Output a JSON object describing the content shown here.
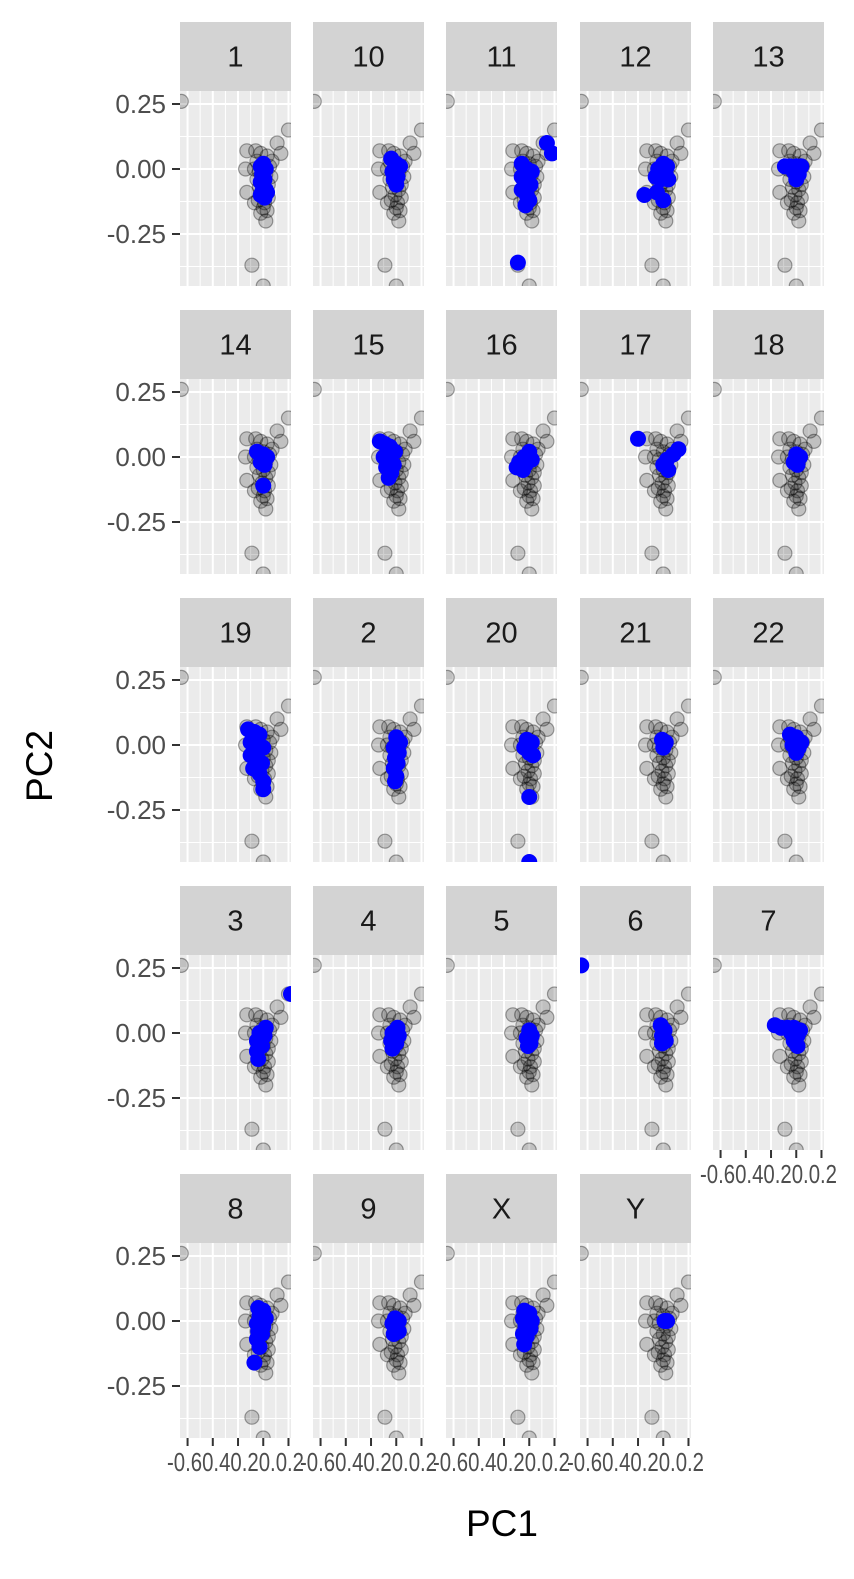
{
  "chart_data": {
    "type": "scatter",
    "xlabel": "PC1",
    "ylabel": "PC2",
    "xlim": [
      -0.66,
      0.22
    ],
    "ylim": [
      -0.45,
      0.3
    ],
    "y_ticks": [
      {
        "value": 0.25,
        "label": "0.25"
      },
      {
        "value": 0.0,
        "label": "0.00"
      },
      {
        "value": -0.25,
        "label": "-0.25"
      }
    ],
    "x_ticks": [
      {
        "value": -0.6,
        "label": "-0.6"
      },
      {
        "value": -0.4,
        "label": "-0.4"
      },
      {
        "value": -0.2,
        "label": "-0.2"
      },
      {
        "value": 0.0,
        "label": "0.0"
      },
      {
        "value": 0.2,
        "label": "0.2"
      }
    ],
    "x_tick_axis_text": "-0.60.40.20.0.2",
    "colors": {
      "panel_bg": "#ebebeb",
      "grid": "#ffffff",
      "strip_bg": "#d3d3d3",
      "background_point": "#000000",
      "highlight_point": "#0000ff"
    },
    "background_points": [
      [
        -0.65,
        0.26
      ],
      [
        0.2,
        0.15
      ],
      [
        0.11,
        0.1
      ],
      [
        0.14,
        0.06
      ],
      [
        -0.13,
        0.07
      ],
      [
        -0.14,
        0.0
      ],
      [
        -0.13,
        -0.09
      ],
      [
        -0.07,
        -0.13
      ],
      [
        0.02,
        -0.2
      ],
      [
        -0.09,
        -0.37
      ],
      [
        0.0,
        -0.45
      ],
      [
        -0.06,
        0.07
      ],
      [
        -0.02,
        0.06
      ],
      [
        0.03,
        0.05
      ],
      [
        0.07,
        0.03
      ],
      [
        -0.05,
        0.03
      ],
      [
        0.0,
        0.02
      ],
      [
        0.05,
        0.01
      ],
      [
        -0.07,
        0.0
      ],
      [
        -0.03,
        -0.01
      ],
      [
        0.02,
        -0.02
      ],
      [
        0.06,
        -0.03
      ],
      [
        -0.05,
        -0.04
      ],
      [
        0.0,
        -0.05
      ],
      [
        0.04,
        -0.06
      ],
      [
        -0.03,
        -0.07
      ],
      [
        0.02,
        -0.08
      ],
      [
        -0.01,
        -0.1
      ],
      [
        0.04,
        -0.11
      ],
      [
        -0.04,
        -0.12
      ],
      [
        0.01,
        -0.13
      ],
      [
        0.0,
        -0.15
      ],
      [
        0.03,
        -0.16
      ],
      [
        -0.02,
        -0.17
      ]
    ],
    "panels": [
      {
        "label": "1",
        "points": [
          [
            -0.02,
            0.01
          ],
          [
            0.0,
            0.02
          ],
          [
            0.02,
            0.0
          ],
          [
            -0.01,
            -0.02
          ],
          [
            0.01,
            -0.04
          ],
          [
            -0.02,
            -0.05
          ],
          [
            0.0,
            -0.07
          ],
          [
            0.02,
            -0.08
          ],
          [
            -0.01,
            -0.09
          ],
          [
            0.03,
            -0.09
          ],
          [
            -0.02,
            -0.1
          ],
          [
            0.01,
            -0.11
          ]
        ]
      },
      {
        "label": "10",
        "points": [
          [
            -0.04,
            0.04
          ],
          [
            0.0,
            0.02
          ],
          [
            0.03,
            0.01
          ],
          [
            -0.03,
            -0.01
          ],
          [
            0.01,
            -0.03
          ],
          [
            -0.02,
            -0.04
          ],
          [
            0.0,
            -0.06
          ]
        ]
      },
      {
        "label": "11",
        "points": [
          [
            0.14,
            0.1
          ],
          [
            0.18,
            0.06
          ],
          [
            -0.06,
            0.02
          ],
          [
            -0.02,
            0.0
          ],
          [
            0.02,
            -0.01
          ],
          [
            -0.06,
            -0.03
          ],
          [
            -0.02,
            -0.05
          ],
          [
            0.01,
            -0.06
          ],
          [
            -0.06,
            -0.08
          ],
          [
            -0.02,
            -0.1
          ],
          [
            0.0,
            -0.12
          ],
          [
            -0.03,
            -0.14
          ],
          [
            -0.09,
            -0.36
          ]
        ]
      },
      {
        "label": "12",
        "points": [
          [
            0.0,
            0.02
          ],
          [
            0.03,
            0.01
          ],
          [
            -0.04,
            0.0
          ],
          [
            0.02,
            -0.02
          ],
          [
            -0.06,
            -0.03
          ],
          [
            -0.02,
            -0.04
          ],
          [
            0.04,
            -0.04
          ],
          [
            -0.15,
            -0.1
          ],
          [
            -0.05,
            -0.09
          ],
          [
            0.0,
            -0.12
          ]
        ]
      },
      {
        "label": "13",
        "points": [
          [
            -0.09,
            0.01
          ],
          [
            -0.05,
            0.01
          ],
          [
            0.0,
            0.01
          ],
          [
            0.04,
            0.01
          ],
          [
            -0.02,
            -0.01
          ],
          [
            0.02,
            -0.02
          ],
          [
            0.0,
            -0.04
          ]
        ]
      },
      {
        "label": "14",
        "points": [
          [
            -0.05,
            0.02
          ],
          [
            0.0,
            0.01
          ],
          [
            0.03,
            0.0
          ],
          [
            -0.02,
            -0.02
          ],
          [
            0.01,
            -0.03
          ],
          [
            0.0,
            -0.11
          ]
        ]
      },
      {
        "label": "15",
        "points": [
          [
            -0.13,
            0.06
          ],
          [
            -0.09,
            0.05
          ],
          [
            -0.05,
            0.04
          ],
          [
            -0.01,
            0.02
          ],
          [
            -0.1,
            0.0
          ],
          [
            -0.06,
            -0.01
          ],
          [
            -0.02,
            -0.03
          ],
          [
            -0.08,
            -0.04
          ],
          [
            -0.04,
            -0.06
          ],
          [
            -0.06,
            -0.08
          ]
        ]
      },
      {
        "label": "16",
        "points": [
          [
            0.0,
            0.02
          ],
          [
            -0.04,
            0.0
          ],
          [
            0.02,
            -0.01
          ],
          [
            -0.08,
            -0.02
          ],
          [
            -0.03,
            -0.03
          ],
          [
            -0.1,
            -0.04
          ],
          [
            -0.05,
            -0.05
          ]
        ]
      },
      {
        "label": "17",
        "points": [
          [
            -0.2,
            0.07
          ],
          [
            0.12,
            0.03
          ],
          [
            0.08,
            0.01
          ],
          [
            0.03,
            -0.01
          ],
          [
            0.0,
            -0.03
          ],
          [
            0.04,
            -0.05
          ]
        ]
      },
      {
        "label": "18",
        "points": [
          [
            0.0,
            0.01
          ],
          [
            0.03,
            0.0
          ],
          [
            -0.02,
            -0.02
          ],
          [
            0.01,
            -0.03
          ]
        ]
      },
      {
        "label": "19",
        "points": [
          [
            -0.12,
            0.06
          ],
          [
            -0.07,
            0.05
          ],
          [
            -0.03,
            0.04
          ],
          [
            -0.1,
            0.01
          ],
          [
            -0.05,
            0.0
          ],
          [
            0.0,
            -0.01
          ],
          [
            -0.1,
            -0.04
          ],
          [
            -0.06,
            -0.05
          ],
          [
            -0.01,
            -0.07
          ],
          [
            -0.08,
            -0.09
          ],
          [
            -0.03,
            -0.11
          ],
          [
            0.0,
            -0.14
          ],
          [
            0.0,
            -0.17
          ]
        ]
      },
      {
        "label": "2",
        "points": [
          [
            0.0,
            0.03
          ],
          [
            0.03,
            0.01
          ],
          [
            -0.02,
            -0.01
          ],
          [
            0.02,
            -0.03
          ],
          [
            -0.01,
            -0.05
          ],
          [
            0.01,
            -0.07
          ],
          [
            -0.02,
            -0.09
          ],
          [
            0.0,
            -0.12
          ],
          [
            -0.01,
            -0.14
          ]
        ]
      },
      {
        "label": "20",
        "points": [
          [
            -0.02,
            0.02
          ],
          [
            0.02,
            0.01
          ],
          [
            -0.04,
            -0.01
          ],
          [
            0.0,
            -0.03
          ],
          [
            0.03,
            -0.04
          ],
          [
            0.0,
            -0.2
          ],
          [
            0.0,
            -0.45
          ]
        ]
      },
      {
        "label": "21",
        "points": [
          [
            -0.01,
            0.02
          ],
          [
            0.02,
            0.01
          ],
          [
            0.0,
            -0.01
          ]
        ]
      },
      {
        "label": "22",
        "points": [
          [
            -0.05,
            0.04
          ],
          [
            0.0,
            0.03
          ],
          [
            0.04,
            0.01
          ],
          [
            -0.03,
            0.0
          ],
          [
            0.02,
            -0.01
          ],
          [
            0.0,
            -0.03
          ]
        ]
      },
      {
        "label": "3",
        "points": [
          [
            0.22,
            0.15
          ],
          [
            0.02,
            0.02
          ],
          [
            -0.03,
            0.0
          ],
          [
            0.01,
            -0.01
          ],
          [
            -0.05,
            -0.03
          ],
          [
            -0.01,
            -0.05
          ],
          [
            -0.05,
            -0.07
          ],
          [
            -0.04,
            -0.1
          ]
        ]
      },
      {
        "label": "4",
        "points": [
          [
            0.01,
            0.02
          ],
          [
            -0.03,
            0.0
          ],
          [
            0.02,
            -0.01
          ],
          [
            -0.04,
            -0.03
          ],
          [
            0.0,
            -0.04
          ],
          [
            -0.03,
            -0.06
          ]
        ]
      },
      {
        "label": "5",
        "points": [
          [
            0.0,
            0.01
          ],
          [
            0.02,
            -0.01
          ],
          [
            -0.02,
            -0.02
          ],
          [
            0.01,
            -0.04
          ],
          [
            -0.01,
            -0.05
          ]
        ]
      },
      {
        "label": "6",
        "points": [
          [
            -0.65,
            0.26
          ],
          [
            -0.02,
            0.03
          ],
          [
            0.01,
            0.01
          ],
          [
            -0.01,
            -0.01
          ],
          [
            0.02,
            -0.03
          ],
          [
            -0.01,
            -0.04
          ]
        ]
      },
      {
        "label": "7",
        "points": [
          [
            -0.17,
            0.03
          ],
          [
            -0.12,
            0.02
          ],
          [
            -0.07,
            0.02
          ],
          [
            -0.02,
            0.02
          ],
          [
            0.03,
            0.01
          ],
          [
            -0.04,
            0.0
          ],
          [
            0.01,
            -0.01
          ],
          [
            -0.02,
            -0.03
          ],
          [
            0.01,
            -0.05
          ]
        ]
      },
      {
        "label": "8",
        "points": [
          [
            -0.04,
            0.05
          ],
          [
            0.0,
            0.04
          ],
          [
            -0.03,
            0.02
          ],
          [
            0.02,
            0.01
          ],
          [
            -0.05,
            -0.01
          ],
          [
            0.0,
            -0.02
          ],
          [
            -0.04,
            -0.04
          ],
          [
            -0.01,
            -0.05
          ],
          [
            -0.05,
            -0.07
          ],
          [
            -0.03,
            -0.1
          ],
          [
            -0.07,
            -0.16
          ]
        ]
      },
      {
        "label": "9",
        "points": [
          [
            -0.01,
            0.01
          ],
          [
            0.02,
            0.0
          ],
          [
            -0.03,
            -0.01
          ],
          [
            0.0,
            -0.03
          ],
          [
            0.02,
            -0.04
          ],
          [
            -0.02,
            -0.05
          ]
        ]
      },
      {
        "label": "X",
        "points": [
          [
            -0.04,
            0.04
          ],
          [
            0.0,
            0.03
          ],
          [
            -0.05,
            0.01
          ],
          [
            -0.01,
            0.0
          ],
          [
            0.02,
            0.0
          ],
          [
            -0.03,
            -0.02
          ],
          [
            0.01,
            -0.03
          ],
          [
            -0.05,
            -0.05
          ],
          [
            -0.02,
            -0.06
          ],
          [
            -0.04,
            -0.09
          ]
        ]
      },
      {
        "label": "Y",
        "points": [
          [
            0.01,
            0.0
          ],
          [
            0.03,
            0.0
          ]
        ]
      }
    ]
  }
}
